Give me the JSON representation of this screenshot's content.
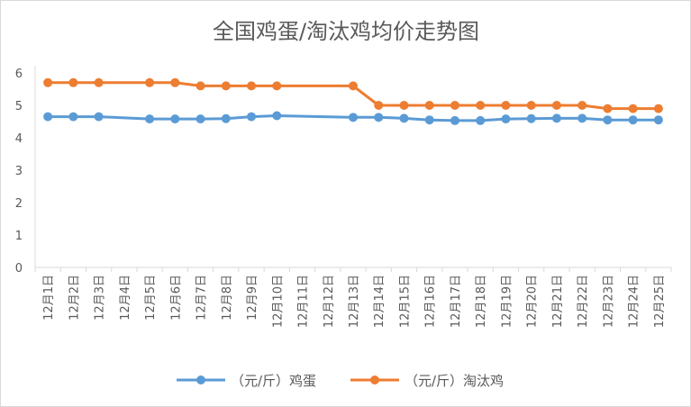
{
  "chart_data": {
    "type": "line",
    "title": "全国鸡蛋/淘汰鸡均价走势图",
    "categories": [
      "12月1日",
      "12月2日",
      "12月3日",
      "12月4日",
      "12月5日",
      "12月6日",
      "12月7日",
      "12月8日",
      "12月9日",
      "12月10日",
      "12月11日",
      "12月12日",
      "12月13日",
      "12月14日",
      "12月15日",
      "12月16日",
      "12月17日",
      "12月18日",
      "12月19日",
      "12月20日",
      "12月21日",
      "12月22日",
      "12月23日",
      "12月24日",
      "12月25日"
    ],
    "ylim": [
      0,
      6
    ],
    "yticks": [
      0,
      1,
      2,
      3,
      4,
      5,
      6
    ],
    "grid": false,
    "legend_position": "bottom",
    "series": [
      {
        "name": "（元/斤）鸡蛋",
        "color": "#5B9BD5",
        "values": [
          4.65,
          4.65,
          4.65,
          null,
          4.58,
          4.58,
          4.58,
          4.59,
          4.65,
          4.68,
          null,
          null,
          4.63,
          4.63,
          4.6,
          4.55,
          4.53,
          4.53,
          4.58,
          4.59,
          4.6,
          4.6,
          4.55,
          4.55,
          4.55
        ]
      },
      {
        "name": "（元/斤）淘汰鸡",
        "color": "#ED7D31",
        "values": [
          5.7,
          5.7,
          5.7,
          null,
          5.7,
          5.7,
          5.6,
          5.6,
          5.6,
          5.6,
          null,
          null,
          5.6,
          5.0,
          5.0,
          5.0,
          5.0,
          5.0,
          5.0,
          5.0,
          5.0,
          5.0,
          4.9,
          4.9,
          4.9
        ]
      }
    ]
  }
}
